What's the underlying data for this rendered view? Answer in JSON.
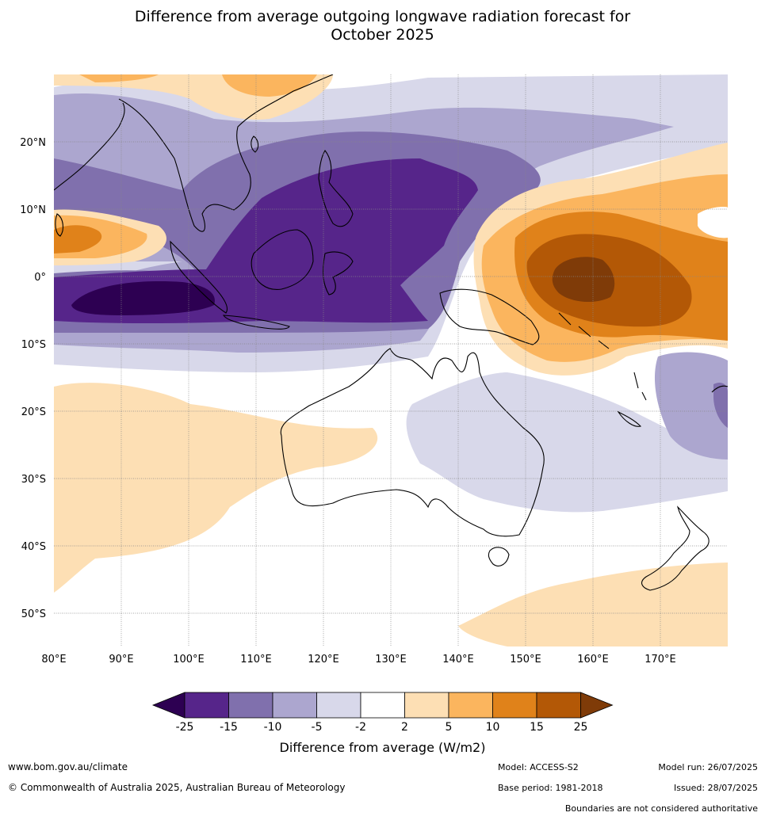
{
  "title_line1": "Difference from average outgoing longwave radiation forecast for",
  "title_line2": "October 2025",
  "map": {
    "lat_labels": [
      "20°N",
      "10°N",
      "0°",
      "10°S",
      "20°S",
      "30°S",
      "40°S",
      "50°S"
    ],
    "lon_labels": [
      "80°E",
      "90°E",
      "100°E",
      "110°E",
      "120°E",
      "130°E",
      "140°E",
      "150°E",
      "160°E",
      "170°E"
    ]
  },
  "legend": {
    "ticks": [
      "-25",
      "-15",
      "-10",
      "-5",
      "-2",
      "2",
      "5",
      "10",
      "15",
      "25"
    ],
    "colors": [
      "#2d0052",
      "#56258a",
      "#8070ad",
      "#aca6cf",
      "#d8d8ea",
      "#ffffff",
      "#fddfb4",
      "#fbb55e",
      "#e0821a",
      "#b35806",
      "#7f3b08"
    ],
    "label": "Difference from average (W/m2)"
  },
  "footer": {
    "url": "www.bom.gov.au/climate",
    "copyright": "© Commonwealth of Australia 2025, Australian Bureau of Meteorology",
    "model": "Model: ACCESS-S2",
    "base_period": "Base period: 1981-2018",
    "model_run": "Model run: 26/07/2025",
    "issued": "Issued: 28/07/2025",
    "disclaimer": "Boundaries are not considered authoritative"
  }
}
